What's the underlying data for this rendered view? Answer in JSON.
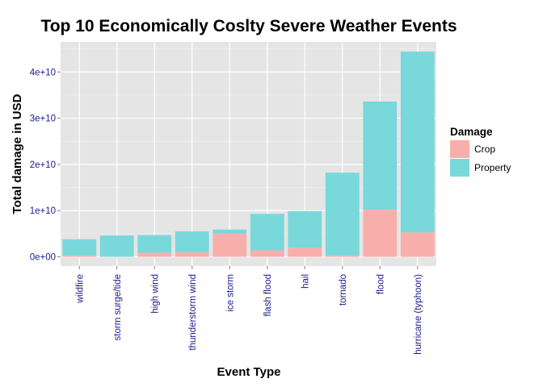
{
  "chart_data": {
    "type": "bar",
    "stacked": true,
    "title": "Top 10 Economically Coslty Severe Weather Events",
    "xlabel": "Event Type",
    "ylabel": "Total damage in USD",
    "ylim": [
      -2000000000,
      46500000000
    ],
    "yticks": [
      0,
      10000000000,
      20000000000,
      30000000000,
      40000000000
    ],
    "ytick_labels": [
      "0e+00",
      "1e+10",
      "2e+10",
      "3e+10",
      "4e+10"
    ],
    "grid": true,
    "legend": {
      "title": "Damage",
      "position": "right"
    },
    "categories": [
      "wildfire",
      "storm surge/tide",
      "high wind",
      "thunderstorm wind",
      "ice storm",
      "flash flood",
      "hail",
      "tornado",
      "flood",
      "hurricane (typhoon)"
    ],
    "series": [
      {
        "name": "Crop",
        "color": "#F8AFAB",
        "values": [
          300000000.0,
          0.0,
          900000000.0,
          1000000000.0,
          5000000000.0,
          1400000000.0,
          2000000000.0,
          300000000.0,
          10200000000.0,
          5300000000.0
        ]
      },
      {
        "name": "Property",
        "color": "#79D8DA",
        "values": [
          3500000000.0,
          4600000000.0,
          3800000000.0,
          4500000000.0,
          900000000.0,
          7900000000.0,
          7900000000.0,
          17900000000.0,
          23400000000.0,
          39100000000.0
        ]
      }
    ]
  },
  "colors": {
    "panel_background": "#E5E5E5",
    "gridline_major": "#FFFFFF",
    "gridline_minor": "#F2F2F2",
    "tick_text": "#1A1A8C"
  }
}
